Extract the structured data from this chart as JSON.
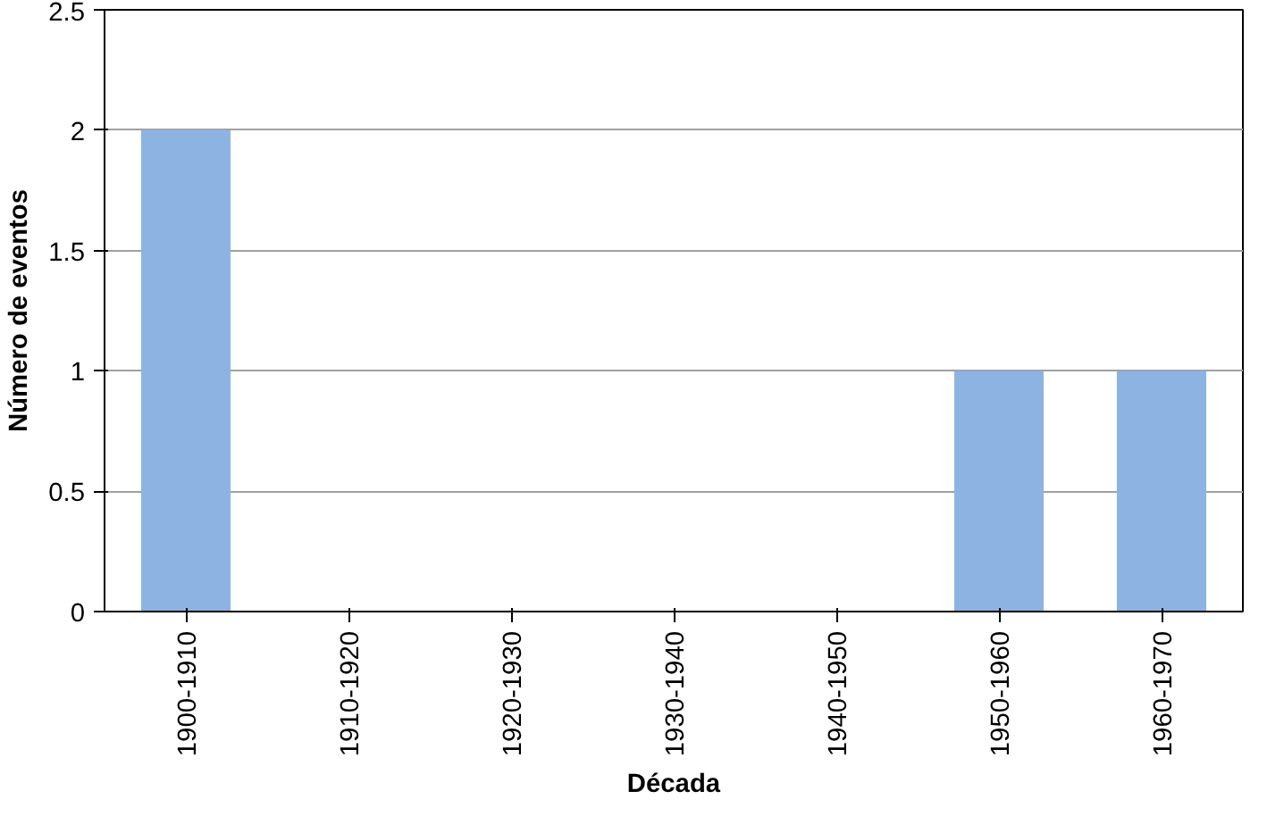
{
  "chart_data": {
    "type": "bar",
    "xlabel": "Década",
    "ylabel": "Número de eventos",
    "categories": [
      "1900-1910",
      "1910-1920",
      "1920-1930",
      "1930-1940",
      "1940-1950",
      "1950-1960",
      "1960-1970"
    ],
    "values": [
      2,
      0,
      0,
      0,
      0,
      1,
      1
    ],
    "color": "#8db3e2",
    "ylim": [
      0,
      2.5
    ],
    "yticks": [
      0,
      0.5,
      1,
      1.5,
      2,
      2.5
    ],
    "grid": "y"
  }
}
